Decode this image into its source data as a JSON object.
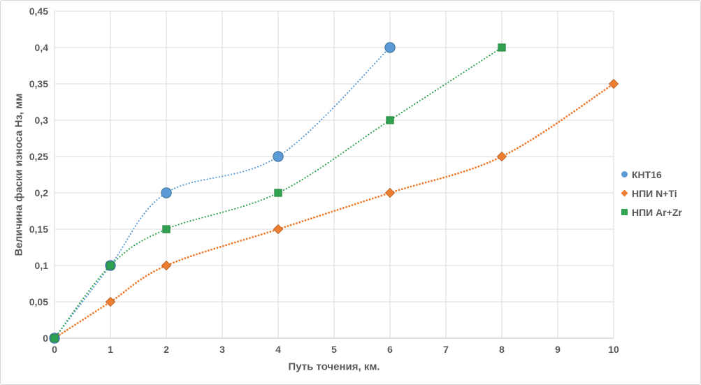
{
  "chart_data": {
    "type": "scatter",
    "title": "",
    "xlabel": "Путь точения, км.",
    "ylabel": "Величина фаски износа Нз, мм",
    "xlim": [
      0,
      10
    ],
    "ylim": [
      0,
      0.45
    ],
    "x_ticks": [
      0,
      1,
      2,
      3,
      4,
      5,
      6,
      7,
      8,
      9,
      10
    ],
    "x_tick_labels": [
      "0",
      "1",
      "2",
      "3",
      "4",
      "5",
      "6",
      "7",
      "8",
      "9",
      "10"
    ],
    "y_ticks": [
      0,
      0.05,
      0.1,
      0.15,
      0.2,
      0.25,
      0.3,
      0.35,
      0.4,
      0.45
    ],
    "y_tick_labels": [
      "0",
      "0,05",
      "0,1",
      "0,15",
      "0,2",
      "0,25",
      "0,3",
      "0,35",
      "0,4",
      "0,45"
    ],
    "grid": true,
    "grid_color": "#d9d9d9",
    "axis_color": "#bfbfbf",
    "tick_label_color": "#595959",
    "legend_position": "right",
    "trendline_style": "dotted",
    "series": [
      {
        "name": "КНТ16",
        "marker": "circle",
        "color": "#5b9bd5",
        "marker_border": "#41719c",
        "points": [
          [
            0,
            0
          ],
          [
            1,
            0.1
          ],
          [
            2,
            0.2
          ],
          [
            4,
            0.25
          ],
          [
            6,
            0.4
          ]
        ]
      },
      {
        "name": "НПИ N+Ti",
        "marker": "diamond",
        "color": "#ed7d31",
        "marker_border": "#ae5a21",
        "points": [
          [
            0,
            0
          ],
          [
            1,
            0.05
          ],
          [
            2,
            0.1
          ],
          [
            4,
            0.15
          ],
          [
            6,
            0.2
          ],
          [
            8,
            0.25
          ],
          [
            10,
            0.35
          ]
        ]
      },
      {
        "name": "НПИ Ar+Zr",
        "marker": "square",
        "color": "#2ea24e",
        "marker_border": "#1e7735",
        "points": [
          [
            0,
            0
          ],
          [
            1,
            0.1
          ],
          [
            2,
            0.15
          ],
          [
            4,
            0.2
          ],
          [
            6,
            0.3
          ],
          [
            8,
            0.4
          ]
        ]
      }
    ]
  }
}
